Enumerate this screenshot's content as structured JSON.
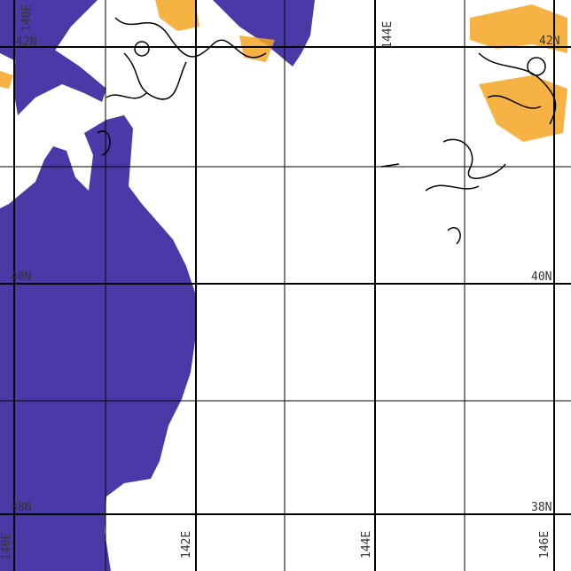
{
  "colors": {
    "land": "#4a3aa8",
    "shade": "#f5a623",
    "contour": "#000000",
    "grid": "#000000"
  },
  "labels": {
    "top_lon_left": "140E",
    "top_lat": "42N",
    "top_lon_mid": "144E",
    "top_right": "42N",
    "lat40_left": "40N",
    "lat40_right": "40N",
    "lat38_left": "38N",
    "lat38_right": "38N",
    "bottom_lon": [
      "140E",
      "142E",
      "144E",
      "146E"
    ]
  }
}
